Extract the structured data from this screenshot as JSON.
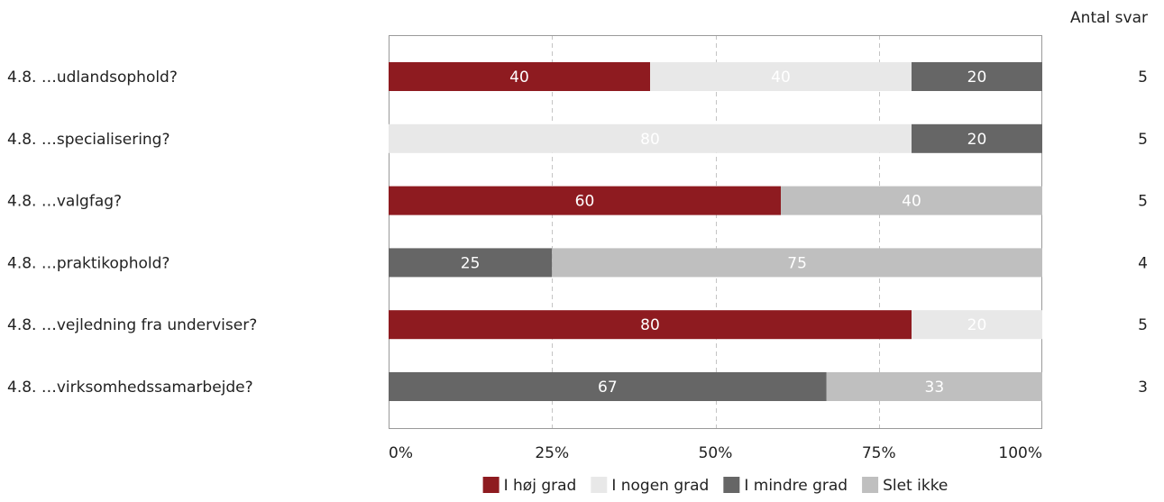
{
  "chart_data": {
    "type": "bar",
    "orientation": "horizontal",
    "stacked": true,
    "categories": [
      "4.8. …udlandsophold?",
      "4.8. …specialisering?",
      "4.8. …valgfag?",
      "4.8. …praktikophold?",
      "4.8. …vejledning fra underviser?",
      "4.8. …virksomhedssamarbejde?"
    ],
    "series": [
      {
        "name": "I høj grad",
        "color": "#8e1b20",
        "label_color": "#ffffff",
        "values": [
          40,
          0,
          60,
          0,
          80,
          0
        ]
      },
      {
        "name": "I nogen grad",
        "color": "#e8e8e8",
        "label_color": "#ffffff",
        "values": [
          40,
          80,
          0,
          0,
          20,
          0
        ]
      },
      {
        "name": "I mindre grad",
        "color": "#666666",
        "label_color": "#ffffff",
        "values": [
          20,
          20,
          0,
          25,
          0,
          67
        ]
      },
      {
        "name": "Slet ikke",
        "color": "#bfbfbf",
        "label_color": "#ffffff",
        "values": [
          0,
          0,
          40,
          75,
          0,
          33
        ]
      }
    ],
    "xlim": [
      0,
      100
    ],
    "xticks": [
      0,
      25,
      50,
      75,
      100
    ],
    "xtick_labels": [
      "0%",
      "25%",
      "50%",
      "75%",
      "100%"
    ],
    "grid": "vertical-dashed",
    "legend_position": "bottom",
    "count_header": "Antal svar",
    "counts": [
      5,
      5,
      5,
      4,
      5,
      3
    ]
  }
}
